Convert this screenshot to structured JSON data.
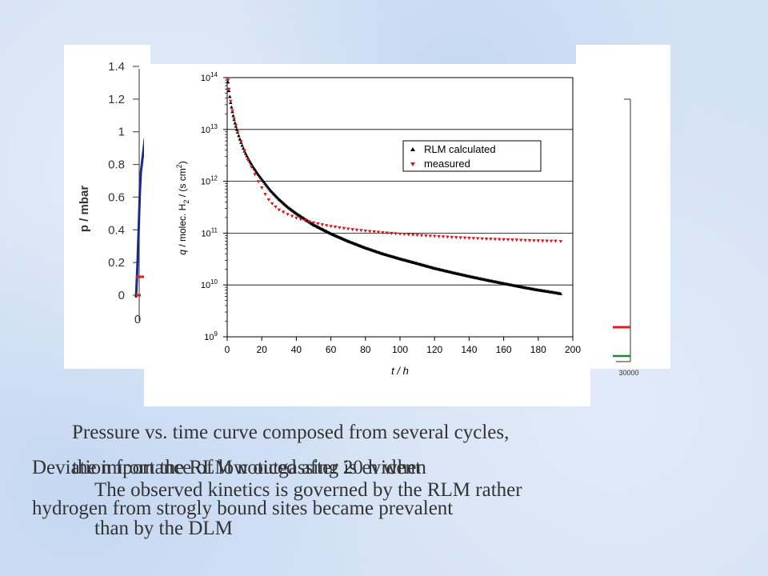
{
  "colors": {
    "calculated": "#000000",
    "measured": "#dd1111",
    "back_curve": "#1a2a88",
    "back_red": "#d42020",
    "back_green": "#1a8a30",
    "caption": "#333333"
  },
  "back_chart": {
    "ylabel": "p / mbar",
    "yticks": [
      "1.4",
      "1.2",
      "1",
      "0.8",
      "0.6",
      "0.4",
      "0.2",
      "0"
    ],
    "xtick_left": "0",
    "xtick_right": "30000"
  },
  "chart_data": {
    "type": "scatter",
    "xlabel": "t / h",
    "ylabel": "q / molec. H2 / (s cm2)",
    "xlim": [
      0,
      200
    ],
    "ylim": [
      1000000000.0,
      100000000000000.0
    ],
    "yscale": "log",
    "grid": "horizontal",
    "legend_position": "top-right",
    "x_ticks": [
      "0",
      "20",
      "40",
      "60",
      "80",
      "100",
      "120",
      "140",
      "160",
      "180",
      "200"
    ],
    "y_ticks": [
      "10^9",
      "10^10",
      "10^11",
      "10^12",
      "10^13",
      "10^14"
    ],
    "series": [
      {
        "name": "RLM calculated",
        "marker": "triangle-up",
        "points": [
          [
            0.5,
            82000000000000.0
          ],
          [
            1,
            56000000000000.0
          ],
          [
            2,
            33000000000000.0
          ],
          [
            3,
            22000000000000.0
          ],
          [
            4,
            15500000000000.0
          ],
          [
            5,
            11500000000000.0
          ],
          [
            6,
            8800000000000.0
          ],
          [
            8,
            5600000000000.0
          ],
          [
            10,
            3800000000000.0
          ],
          [
            12,
            2800000000000.0
          ],
          [
            15,
            1900000000000.0
          ],
          [
            18,
            1350000000000.0
          ],
          [
            20,
            1100000000000.0
          ],
          [
            25,
            670000000000.0
          ],
          [
            30,
            450000000000.0
          ],
          [
            35,
            320000000000.0
          ],
          [
            40,
            240000000000.0
          ],
          [
            50,
            145000000000.0
          ],
          [
            60,
            98000000000.0
          ],
          [
            70,
            70000000000.0
          ],
          [
            80,
            52000000000.0
          ],
          [
            90,
            40000000000.0
          ],
          [
            100,
            32000000000.0
          ],
          [
            110,
            26000000000.0
          ],
          [
            120,
            21000000000.0
          ],
          [
            130,
            17500000000.0
          ],
          [
            140,
            14700000000.0
          ],
          [
            150,
            12500000000.0
          ],
          [
            160,
            10700000000.0
          ],
          [
            170,
            9200000000.0
          ],
          [
            180,
            8000000000.0
          ],
          [
            190,
            7100000000.0
          ],
          [
            193,
            6800000000.0
          ]
        ]
      },
      {
        "name": "measured",
        "marker": "triangle-down",
        "points": [
          [
            0.5,
            90000000000000.0
          ],
          [
            1,
            60000000000000.0
          ],
          [
            2,
            35000000000000.0
          ],
          [
            3,
            23000000000000.0
          ],
          [
            4,
            16000000000000.0
          ],
          [
            5,
            12000000000000.0
          ],
          [
            6,
            9000000000000.0
          ],
          [
            8,
            5800000000000.0
          ],
          [
            10,
            3900000000000.0
          ],
          [
            12,
            2600000000000.0
          ],
          [
            14,
            1900000000000.0
          ],
          [
            16,
            1350000000000.0
          ],
          [
            18,
            980000000000.0
          ],
          [
            20,
            750000000000.0
          ],
          [
            22,
            560000000000.0
          ],
          [
            24,
            440000000000.0
          ],
          [
            26,
            370000000000.0
          ],
          [
            28,
            320000000000.0
          ],
          [
            30,
            280000000000.0
          ],
          [
            35,
            230000000000.0
          ],
          [
            40,
            195000000000.0
          ],
          [
            45,
            175000000000.0
          ],
          [
            50,
            158000000000.0
          ],
          [
            55,
            145000000000.0
          ],
          [
            60,
            135000000000.0
          ],
          [
            70,
            120000000000.0
          ],
          [
            80,
            110000000000.0
          ],
          [
            90,
            102000000000.0
          ],
          [
            100,
            96000000000.0
          ],
          [
            110,
            91000000000.0
          ],
          [
            120,
            87000000000.0
          ],
          [
            130,
            83000000000.0
          ],
          [
            140,
            80000000000.0
          ],
          [
            150,
            77000000000.0
          ],
          [
            160,
            75000000000.0
          ],
          [
            170,
            73000000000.0
          ],
          [
            180,
            71000000000.0
          ],
          [
            190,
            70000000000.0
          ],
          [
            193,
            69000000000.0
          ]
        ]
      }
    ]
  },
  "captions": {
    "line1": "Pressure vs. time curve composed from several cycles,",
    "line2": "the importance of low outgassing is evident",
    "line3": "Deviation from the RLM noticed after 20 h when",
    "line4": "The observed kinetics is governed by the RLM rather",
    "line5": "hydrogen from strogly bound sites became prevalent",
    "line6": "than by the DLM"
  }
}
